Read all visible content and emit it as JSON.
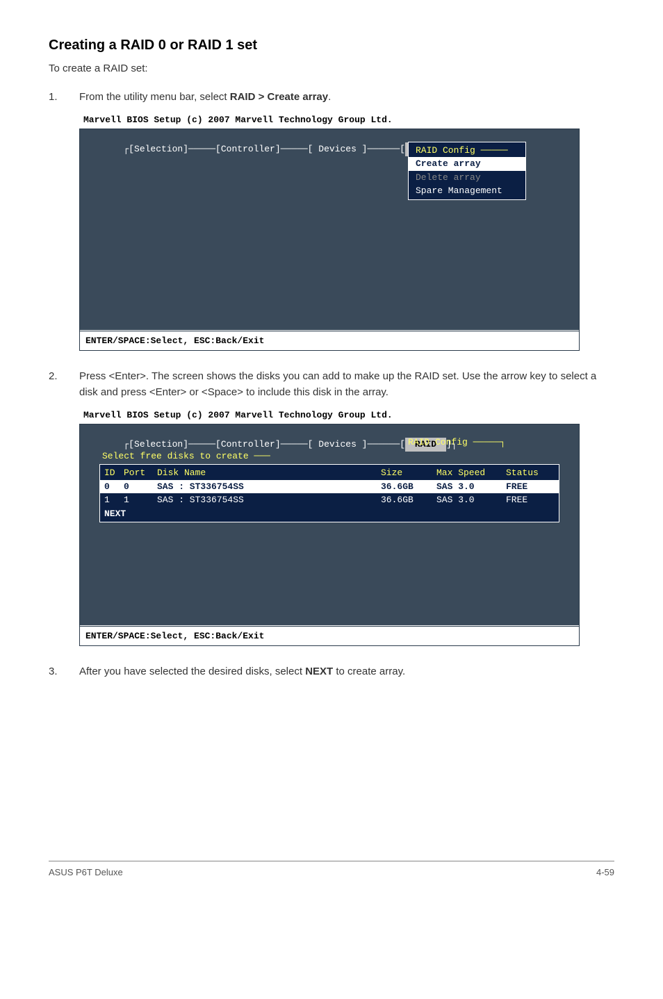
{
  "heading": "Creating a RAID 0 or RAID 1 set",
  "intro": "To create a RAID set:",
  "step1_num": "1.",
  "step1_text_a": "From the utility menu bar, select ",
  "step1_bold": "RAID > Create array",
  "step1_text_b": ".",
  "step2_num": "2.",
  "step2_text": "Press <Enter>. The screen shows the disks you can add to make up the RAID set. Use the arrow key to select a disk and press <Enter> or <Space> to include this disk in the array.",
  "step3_num": "3.",
  "step3_text_a": "After you have selected the desired disks, select ",
  "step3_bold": "NEXT",
  "step3_text_b": " to create array.",
  "bios": {
    "title": "Marvell BIOS Setup (c) 2007 Marvell Technology Group Ltd.",
    "tabs": "┌[Selection]─────[Controller]─────[ Devices ]──────[",
    "raid_tab": " RAID ",
    "tabs_end": "]┐",
    "menu_title": "RAID Config ─────",
    "menu_create": "Create array",
    "menu_delete": "Delete array",
    "menu_spare": "Spare Management",
    "footer": "ENTER/SPACE:Select, ESC:Back/Exit",
    "raid_config": "RAID Config ─────┐",
    "select_title": "Select free disks to create ───",
    "hdr_id": "ID",
    "hdr_port": "Port",
    "hdr_name": "Disk Name",
    "hdr_size": "Size",
    "hdr_speed": "Max Speed",
    "hdr_status": "Status",
    "r0_id": "0",
    "r0_port": "0",
    "r0_name": "SAS : ST336754SS",
    "r0_size": "36.6GB",
    "r0_speed": "SAS 3.0",
    "r0_status": "FREE",
    "r1_id": "1",
    "r1_port": "1",
    "r1_name": "SAS : ST336754SS",
    "r1_size": "36.6GB",
    "r1_speed": "SAS 3.0",
    "r1_status": "FREE",
    "next": "NEXT"
  },
  "footer_left": "ASUS P6T Deluxe",
  "footer_right": "4-59"
}
